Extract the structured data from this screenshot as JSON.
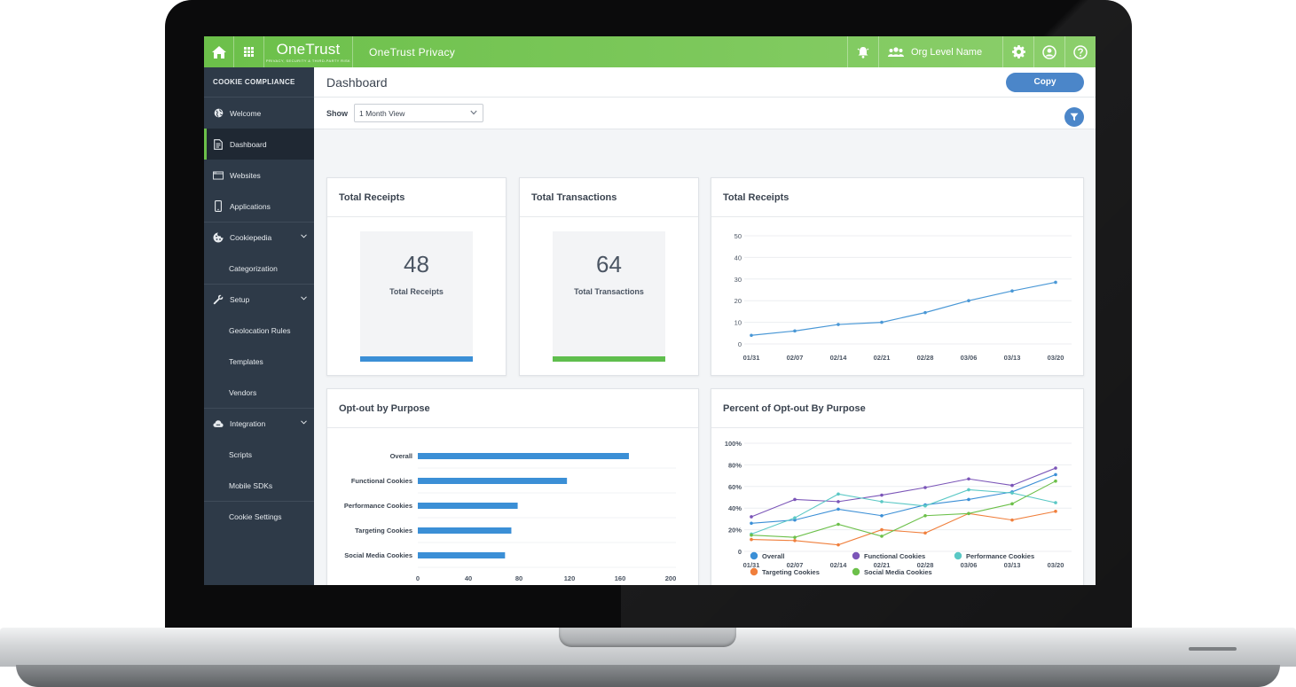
{
  "topbar": {
    "logo_main": "OneTrust",
    "logo_sub": "PRIVACY, SECURITY & THIRD-PARTY RISK",
    "app_title": "OneTrust Privacy",
    "org_name": "Org Level Name",
    "icons": [
      "home-icon",
      "grid-icon",
      "bell-icon",
      "users-icon",
      "gear-icon",
      "user-icon",
      "help-icon"
    ]
  },
  "sidebar": {
    "header": "COOKIE COMPLIANCE",
    "items": [
      {
        "label": "Welcome",
        "icon": "globe-icon"
      },
      {
        "label": "Dashboard",
        "icon": "document-icon",
        "active": true
      },
      {
        "label": "Websites",
        "icon": "browser-icon"
      },
      {
        "label": "Applications",
        "icon": "phone-icon"
      },
      {
        "label": "Cookiepedia",
        "icon": "cookie-icon"
      },
      {
        "label": "Categorization"
      },
      {
        "label": "Setup",
        "icon": "wrench-icon"
      },
      {
        "label": "Geolocation Rules"
      },
      {
        "label": "Templates"
      },
      {
        "label": "Vendors"
      },
      {
        "label": "Integration",
        "icon": "cloud-icon"
      },
      {
        "label": "Scripts"
      },
      {
        "label": "Mobile SDKs"
      },
      {
        "label": "Cookie Settings"
      }
    ]
  },
  "main": {
    "title": "Dashboard",
    "copy_label": "Copy",
    "show_label": "Show",
    "view_select": "1 Month View"
  },
  "cards": {
    "receipts": {
      "title": "Total Receipts",
      "value": "48",
      "label": "Total Receipts",
      "bar_color": "#3b8fd6"
    },
    "transactions": {
      "title": "Total Transactions",
      "value": "64",
      "label": "Total Transactions",
      "bar_color": "#5fbe4d"
    },
    "receipts_chart_title": "Total Receipts",
    "optout_title": "Opt-out by Purpose",
    "percent_title": "Percent of Opt-out By Purpose"
  },
  "chart_data": [
    {
      "type": "line",
      "title": "Total Receipts",
      "x": [
        "01/31",
        "02/07",
        "02/14",
        "02/21",
        "02/28",
        "03/06",
        "03/13",
        "03/20"
      ],
      "series": [
        {
          "values": [
            4,
            6,
            9,
            10,
            14.5,
            20,
            24.5,
            28.5
          ]
        }
      ],
      "ylim": [
        0,
        50
      ],
      "yticks": [
        0,
        10,
        20,
        30,
        40,
        50
      ],
      "color": "#4a98d6"
    },
    {
      "type": "bar",
      "orientation": "horizontal",
      "title": "Opt-out by Purpose",
      "categories": [
        "Overall",
        "Functional Cookies",
        "Performance Cookies",
        "Targeting Cookies",
        "Social Media Cookies"
      ],
      "values": [
        167,
        118,
        79,
        74,
        69
      ],
      "xlim": [
        0,
        200
      ],
      "xticks": [
        0,
        40,
        80,
        120,
        160,
        200
      ],
      "color": "#3b8fd6"
    },
    {
      "type": "line",
      "title": "Percent of Opt-out By Purpose",
      "x": [
        "01/31",
        "02/07",
        "02/14",
        "02/21",
        "02/28",
        "03/06",
        "03/13",
        "03/20"
      ],
      "yticks": [
        "0",
        "20%",
        "40%",
        "60%",
        "80%",
        "100%"
      ],
      "ylim": [
        0,
        100
      ],
      "series": [
        {
          "name": "Overall",
          "color": "#3b8fd6",
          "values": [
            26,
            29,
            39,
            33,
            43,
            48,
            55,
            71
          ]
        },
        {
          "name": "Functional Cookies",
          "color": "#7b55b8",
          "values": [
            32,
            48,
            46,
            52,
            59,
            67,
            61,
            77
          ]
        },
        {
          "name": "Performance Cookies",
          "color": "#5ac8c5",
          "values": [
            16,
            31,
            53,
            46,
            42,
            57,
            54,
            45
          ]
        },
        {
          "name": "Targeting Cookies",
          "color": "#f07f3c",
          "values": [
            11,
            10,
            6,
            20,
            17,
            35,
            29,
            37
          ]
        },
        {
          "name": "Social Media Cookies",
          "color": "#6cc04a",
          "values": [
            15,
            13,
            25,
            14,
            33,
            35,
            44,
            65
          ]
        }
      ]
    }
  ]
}
